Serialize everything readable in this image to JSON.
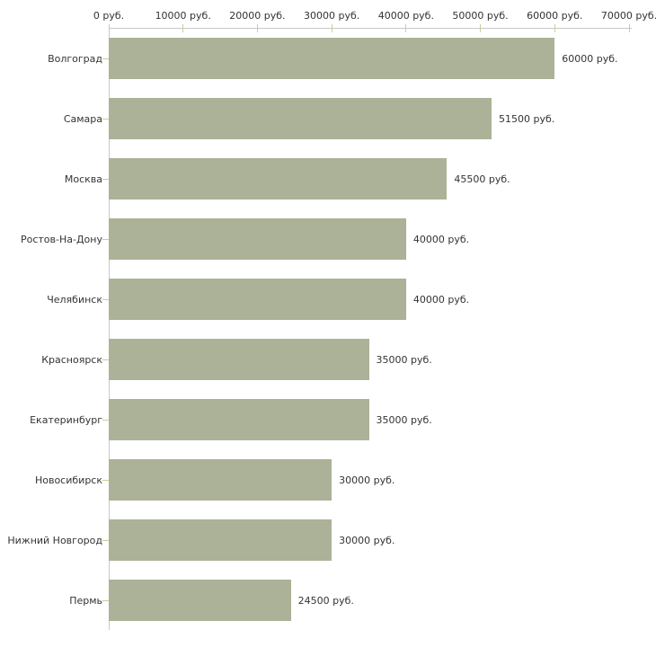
{
  "chart_data": {
    "type": "bar",
    "orientation": "horizontal",
    "title": "",
    "categories": [
      "Волгоград",
      "Самара",
      "Москва",
      "Ростов-На-Дону",
      "Челябинск",
      "Красноярск",
      "Екатеринбург",
      "Новосибирск",
      "Нижний Новгород",
      "Пермь"
    ],
    "values": [
      60000,
      51500,
      45500,
      40000,
      40000,
      35000,
      35000,
      30000,
      30000,
      24500
    ],
    "value_labels": [
      "60000 руб.",
      "51500 руб.",
      "45500 руб.",
      "40000 руб.",
      "40000 руб.",
      "35000 руб.",
      "35000 руб.",
      "30000 руб.",
      "30000 руб.",
      "24500 руб."
    ],
    "unit": "руб.",
    "x_axis": {
      "position": "top",
      "min": 0,
      "max": 70000,
      "tick_values": [
        0,
        10000,
        20000,
        30000,
        40000,
        50000,
        60000,
        70000
      ],
      "tick_labels": [
        "0 руб.",
        "10000 руб.",
        "20000 руб.",
        "30000 руб.",
        "40000 руб.",
        "50000 руб.",
        "60000 руб.",
        "70000 руб."
      ]
    },
    "grid": false,
    "legend": false,
    "colors": {
      "bar": "#abb297",
      "tick": "#cccc99",
      "axis_line": "#c8c8c8",
      "text": "#333333",
      "background": "#ffffff"
    }
  }
}
